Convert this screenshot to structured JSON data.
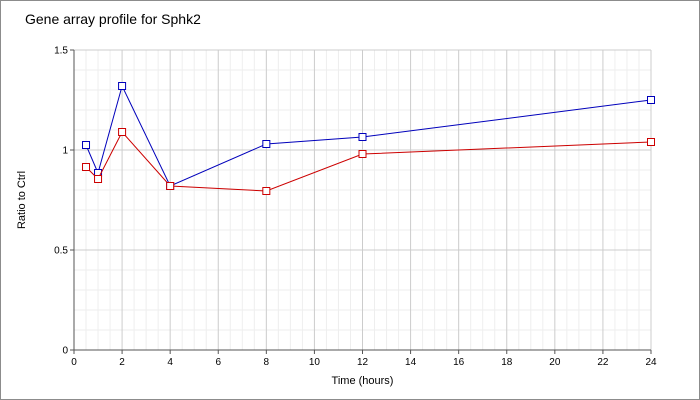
{
  "chart_data": {
    "type": "line",
    "title": "Gene array profile for Sphk2",
    "xlabel": "Time (hours)",
    "ylabel": "Ratio to Ctrl",
    "xlim": [
      0,
      24
    ],
    "ylim": [
      0,
      1.5
    ],
    "x_ticks": [
      "0",
      "2",
      "4",
      "6",
      "8",
      "10",
      "12",
      "14",
      "16",
      "18",
      "20",
      "22",
      "24"
    ],
    "y_ticks": [
      "0",
      "0.5",
      "1",
      "1.5"
    ],
    "grid": true,
    "series": [
      {
        "color": "#0000bb",
        "points": [
          {
            "x": 0.5,
            "y": 1.025
          },
          {
            "x": 1,
            "y": 0.885
          },
          {
            "x": 2,
            "y": 1.32
          },
          {
            "x": 4,
            "y": 0.82
          },
          {
            "x": 8,
            "y": 1.03
          },
          {
            "x": 12,
            "y": 1.065
          },
          {
            "x": 24,
            "y": 1.25
          }
        ]
      },
      {
        "color": "#cc0000",
        "points": [
          {
            "x": 0.5,
            "y": 0.915
          },
          {
            "x": 1,
            "y": 0.855
          },
          {
            "x": 2,
            "y": 1.09
          },
          {
            "x": 4,
            "y": 0.82
          },
          {
            "x": 8,
            "y": 0.795
          },
          {
            "x": 12,
            "y": 0.98
          },
          {
            "x": 24,
            "y": 1.04
          }
        ]
      }
    ]
  }
}
